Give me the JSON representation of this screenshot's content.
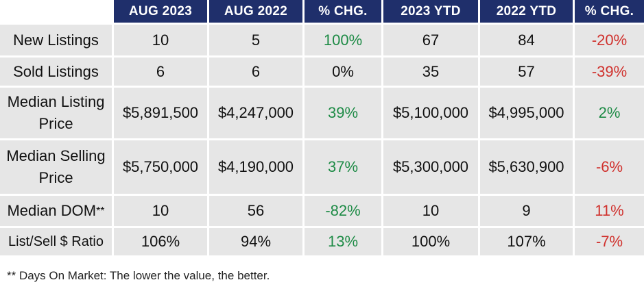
{
  "header": {
    "columns": [
      "AUG 2023",
      "AUG 2022",
      "% CHG.",
      "2023 YTD",
      "2022 YTD",
      "% CHG."
    ]
  },
  "rows": [
    {
      "label": "New Listings",
      "values": [
        "10",
        "5",
        "100%",
        "67",
        "84",
        "-20%"
      ]
    },
    {
      "label": "Sold Listings",
      "values": [
        "6",
        "6",
        "0%",
        "35",
        "57",
        "-39%"
      ]
    },
    {
      "label": "Median Listing Price",
      "values": [
        "$5,891,500",
        "$4,247,000",
        "39%",
        "$5,100,000",
        "$4,995,000",
        "2%"
      ]
    },
    {
      "label": "Median Selling Price",
      "values": [
        "$5,750,000",
        "$4,190,000",
        "37%",
        "$5,300,000",
        "$5,630,900",
        "-6%"
      ]
    },
    {
      "label": "Median DOM",
      "label_mark": "**",
      "values": [
        "10",
        "56",
        "-82%",
        "10",
        "9",
        "11%"
      ]
    },
    {
      "label": "List/Sell $ Ratio",
      "values": [
        "106%",
        "94%",
        "13%",
        "100%",
        "107%",
        "-7%"
      ]
    }
  ],
  "footnote": "** Days On Market: The lower the value, the better.",
  "colors": {
    "header_bg": "#1f2f6b",
    "cell_bg": "#e6e6e6",
    "positive": "#1e8b46",
    "negative": "#d0312d"
  }
}
